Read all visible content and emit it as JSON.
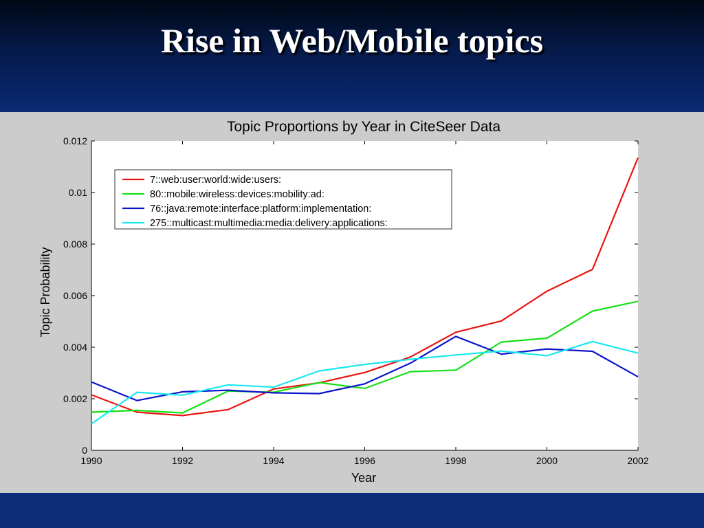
{
  "slide": {
    "title": "Rise in Web/Mobile topics"
  },
  "chart_data": {
    "type": "line",
    "title": "Topic Proportions by Year in CiteSeer Data",
    "xlabel": "Year",
    "ylabel": "Topic Probability",
    "xlim": [
      1990,
      2002
    ],
    "ylim": [
      0,
      0.012
    ],
    "xticks": [
      1990,
      1992,
      1994,
      1996,
      1998,
      2000,
      2002
    ],
    "xtick_labels": [
      "1990",
      "1992",
      "1994",
      "1996",
      "1998",
      "2000",
      "2002"
    ],
    "yticks": [
      0,
      0.002,
      0.004,
      0.006,
      0.008,
      0.01,
      0.012
    ],
    "ytick_labels": [
      "0",
      "0.002",
      "0.004",
      "0.006",
      "0.008",
      "0.01",
      "0.012"
    ],
    "grid": false,
    "legend_position": "top-left",
    "x": [
      1990,
      1991,
      1992,
      1993,
      1994,
      1995,
      1996,
      1997,
      1998,
      1999,
      2000,
      2001,
      2002
    ],
    "series": [
      {
        "name": "7::web:user:world:wide:users:",
        "color": "#e8140f",
        "values": [
          0.00215,
          0.00148,
          0.00135,
          0.00158,
          0.00238,
          0.00262,
          0.00302,
          0.00362,
          0.00458,
          0.00502,
          0.00617,
          0.00702,
          0.01135
        ]
      },
      {
        "name": "80::mobile:wireless:devices:mobility:ad:",
        "color": "#16e016",
        "values": [
          0.00148,
          0.00155,
          0.00145,
          0.0023,
          0.00225,
          0.00263,
          0.0024,
          0.00305,
          0.00311,
          0.0042,
          0.00435,
          0.0054,
          0.00578
        ]
      },
      {
        "name": "76::java:remote:interface:platform:implementation:",
        "color": "#0a14c8",
        "values": [
          0.00265,
          0.00193,
          0.00227,
          0.00233,
          0.00223,
          0.0022,
          0.00258,
          0.00338,
          0.00442,
          0.00373,
          0.00393,
          0.00384,
          0.00285
        ]
      },
      {
        "name": "275::multicast:multimedia:media:delivery:applications:",
        "color": "#18e8f0",
        "values": [
          0.00103,
          0.00225,
          0.00214,
          0.00254,
          0.00245,
          0.00308,
          0.00333,
          0.00353,
          0.0037,
          0.00385,
          0.00367,
          0.00422,
          0.00377
        ]
      }
    ]
  }
}
